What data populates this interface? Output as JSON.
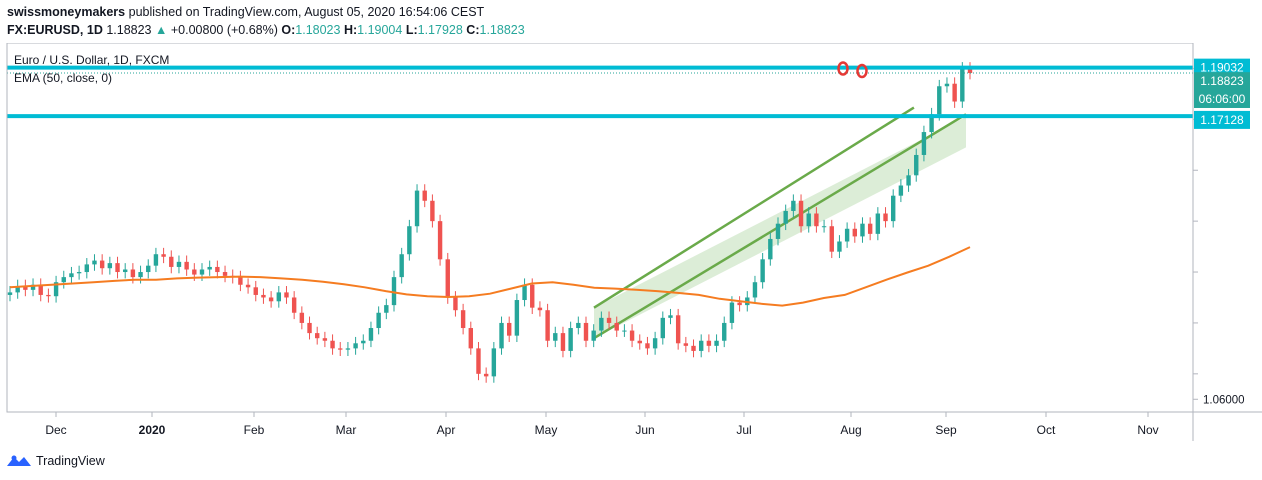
{
  "header": {
    "author": "swissmoneymakers",
    "published_text": "published on TradingView.com, August 05, 2020 16:54:06 CEST",
    "symbol": "FX:EURUSD, 1D",
    "last": "1.18823",
    "change_arrow": "▲",
    "change": "+0.00800 (+0.68%)",
    "o_label": "O:",
    "o_value": "1.18023",
    "h_label": "H:",
    "h_value": "1.19004",
    "l_label": "L:",
    "l_value": "1.17928",
    "c_label": "C:",
    "c_value": "1.18823"
  },
  "legend": {
    "title": "Euro / U.S. Dollar, 1D, FXCM",
    "indicator": "EMA (50, close, 0)"
  },
  "footer": {
    "brand": "TradingView"
  },
  "colors": {
    "up": "#26a69a",
    "down": "#ef5350",
    "ema": "#f57c21",
    "channel": "#6aaa4a",
    "channel_fill": "#d6ead0",
    "level_line": "#00bcd4",
    "label_bg_blue": "#00bcd4",
    "label_bg_green": "#26a69a",
    "marker": "#e53935"
  },
  "chart_data": {
    "type": "candlestick",
    "y_ticks": [
      "1.06000"
    ],
    "x_labels": [
      "Dec",
      "2020",
      "Feb",
      "Mar",
      "Apr",
      "May",
      "Jun",
      "Jul",
      "Aug",
      "Sep",
      "Oct",
      "Nov"
    ],
    "price_labels": {
      "resistance": "1.19032",
      "last": "1.18823",
      "countdown": "06:06:00",
      "support": "1.17128"
    },
    "levels": [
      1.19032,
      1.17128
    ],
    "ema_label": "EMA (50, close, 0)",
    "close_series": [
      1.102,
      1.1045,
      1.103,
      1.105,
      1.101,
      1.1005,
      1.106,
      1.108,
      1.1095,
      1.11,
      1.113,
      1.1145,
      1.1115,
      1.1135,
      1.11,
      1.111,
      1.108,
      1.11,
      1.1125,
      1.117,
      1.116,
      1.112,
      1.114,
      1.111,
      1.109,
      1.111,
      1.112,
      1.11,
      1.1085,
      1.108,
      1.105,
      1.104,
      1.101,
      1.1,
      1.0985,
      1.102,
      1.1,
      1.094,
      1.09,
      1.086,
      1.084,
      1.083,
      1.08,
      1.0795,
      1.08,
      1.082,
      1.083,
      1.088,
      1.094,
      1.097,
      1.108,
      1.117,
      1.128,
      1.142,
      1.138,
      1.13,
      1.115,
      1.1,
      1.095,
      1.088,
      1.08,
      1.07,
      1.069,
      1.08,
      1.09,
      1.085,
      1.099,
      1.105,
      1.096,
      1.095,
      1.083,
      1.086,
      1.079,
      1.088,
      1.09,
      1.083,
      1.087,
      1.092,
      1.09,
      1.087,
      1.087,
      1.083,
      1.082,
      1.08,
      1.084,
      1.092,
      1.093,
      1.082,
      1.081,
      1.079,
      1.083,
      1.081,
      1.083,
      1.09,
      1.098,
      1.097,
      1.1,
      1.106,
      1.115,
      1.123,
      1.129,
      1.134,
      1.138,
      1.128,
      1.133,
      1.128,
      1.128,
      1.118,
      1.122,
      1.127,
      1.124,
      1.129,
      1.125,
      1.133,
      1.13,
      1.14,
      1.144,
      1.148,
      1.156,
      1.165,
      1.172,
      1.183,
      1.184,
      1.177,
      1.19,
      1.1882
    ],
    "ema_series": [
      1.104,
      1.1045,
      1.105,
      1.1055,
      1.106,
      1.1065,
      1.107,
      1.107,
      1.1075,
      1.1078,
      1.108,
      1.1082,
      1.108,
      1.1075,
      1.107,
      1.1062,
      1.1052,
      1.104,
      1.1025,
      1.1012,
      1.1005,
      1.1002,
      1.1005,
      1.1015,
      1.1035,
      1.1055,
      1.106,
      1.105,
      1.1038,
      1.1035,
      1.103,
      1.1025,
      1.1018,
      1.101,
      1.0995,
      1.0985,
      1.0975,
      1.0968,
      1.098,
      1.0998,
      1.101,
      1.104,
      1.107,
      1.1098,
      1.1125,
      1.116,
      1.1198
    ],
    "ema_visible_from_candle": 4,
    "channel": {
      "upper": [
        [
          1.096,
          0
        ],
        [
          1.171,
          1
        ]
      ],
      "lower": [
        [
          1.084,
          0
        ],
        [
          1.159,
          1
        ]
      ]
    }
  }
}
